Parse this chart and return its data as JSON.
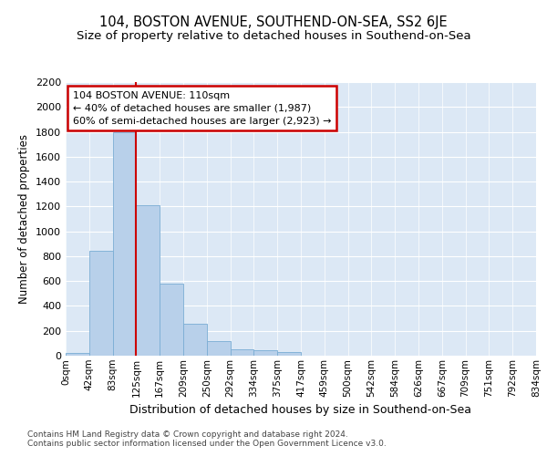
{
  "title": "104, BOSTON AVENUE, SOUTHEND-ON-SEA, SS2 6JE",
  "subtitle": "Size of property relative to detached houses in Southend-on-Sea",
  "xlabel": "Distribution of detached houses by size in Southend-on-Sea",
  "ylabel": "Number of detached properties",
  "bar_values": [
    25,
    840,
    1800,
    1210,
    580,
    260,
    115,
    50,
    45,
    30,
    0,
    0,
    0,
    0,
    0,
    0,
    0,
    0,
    0,
    0
  ],
  "bin_labels": [
    "0sqm",
    "42sqm",
    "83sqm",
    "125sqm",
    "167sqm",
    "209sqm",
    "250sqm",
    "292sqm",
    "334sqm",
    "375sqm",
    "417sqm",
    "459sqm",
    "500sqm",
    "542sqm",
    "584sqm",
    "626sqm",
    "667sqm",
    "709sqm",
    "751sqm",
    "792sqm",
    "834sqm"
  ],
  "bar_color": "#b8d0ea",
  "bar_edge_color": "#7aadd4",
  "fig_bg_color": "#ffffff",
  "ax_bg_color": "#dce8f5",
  "grid_color": "#ffffff",
  "vline_x": 3.0,
  "vline_color": "#cc0000",
  "annotation_text": "104 BOSTON AVENUE: 110sqm\n← 40% of detached houses are smaller (1,987)\n60% of semi-detached houses are larger (2,923) →",
  "annotation_box_edgecolor": "#cc0000",
  "annotation_text_color": "#000000",
  "ylim": [
    0,
    2200
  ],
  "yticks": [
    0,
    200,
    400,
    600,
    800,
    1000,
    1200,
    1400,
    1600,
    1800,
    2000,
    2200
  ],
  "footnote1": "Contains HM Land Registry data © Crown copyright and database right 2024.",
  "footnote2": "Contains public sector information licensed under the Open Government Licence v3.0.",
  "title_fontsize": 10.5,
  "subtitle_fontsize": 9.5,
  "ylabel_fontsize": 8.5,
  "xlabel_fontsize": 9,
  "tick_fontsize": 8,
  "annot_fontsize": 8,
  "footnote_fontsize": 6.5
}
